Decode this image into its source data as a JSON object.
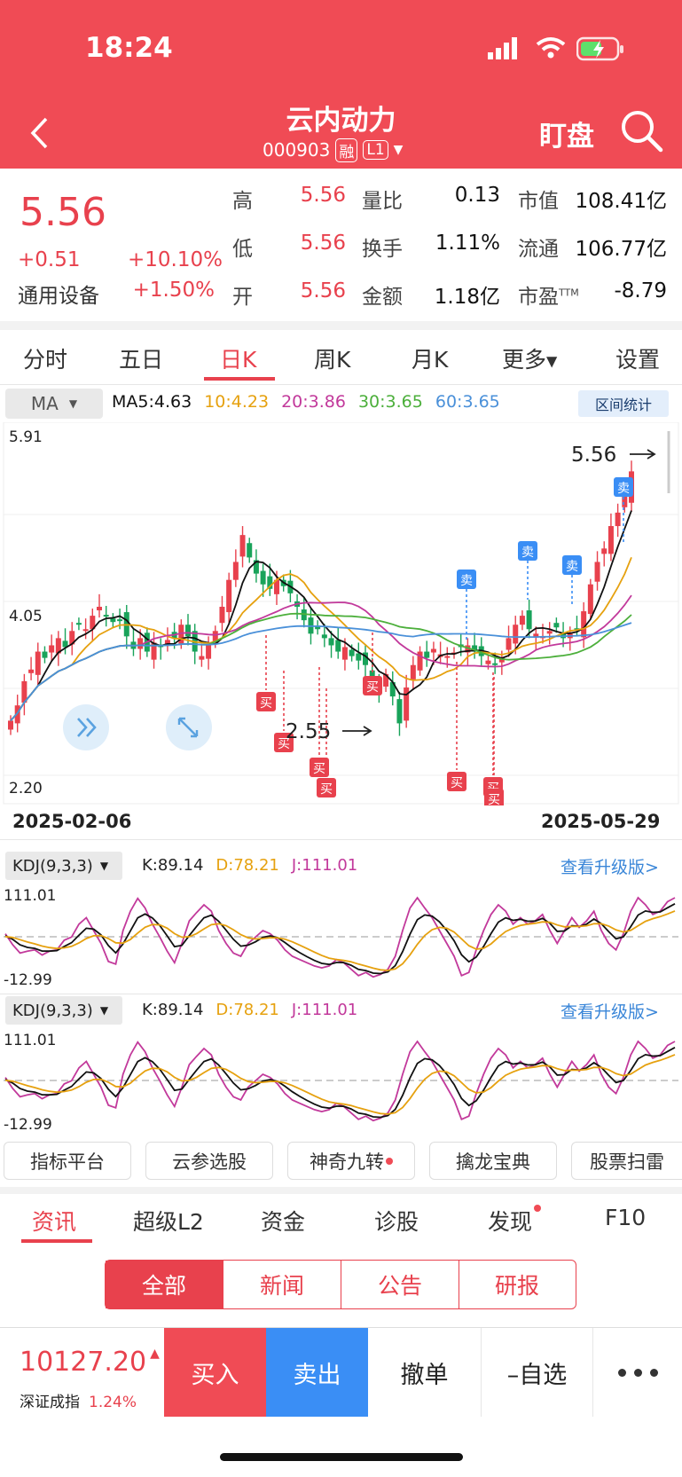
{
  "status": {
    "time": "18:24"
  },
  "header": {
    "title": "云内动力",
    "code": "000903",
    "badge1": "融",
    "badge2": "L1",
    "watch": "盯盘"
  },
  "quote": {
    "price": "5.56",
    "change": "+0.51",
    "change_pct": "+10.10%",
    "sector": "通用设备",
    "sector_pct": "+1.50%",
    "stats": [
      {
        "label": "高",
        "value": "5.56",
        "red": true
      },
      {
        "label": "量比",
        "value": "0.13"
      },
      {
        "label": "市值",
        "value": "108.41亿"
      },
      {
        "label": "低",
        "value": "5.56",
        "red": true
      },
      {
        "label": "换手",
        "value": "1.11%"
      },
      {
        "label": "流通",
        "value": "106.77亿"
      },
      {
        "label": "开",
        "value": "5.56",
        "red": true
      },
      {
        "label": "金额",
        "value": "1.18亿"
      },
      {
        "label": "市盈",
        "value": "-8.79",
        "sup": "TTM"
      }
    ]
  },
  "tabs": [
    "分时",
    "五日",
    "日K",
    "周K",
    "月K",
    "更多",
    "设置"
  ],
  "active_tab": "日K",
  "ma": {
    "selector": "MA",
    "items": [
      {
        "label": "MA5:4.63",
        "color": "#111111"
      },
      {
        "label": "10:4.23",
        "color": "#e6a10f"
      },
      {
        "label": "20:3.86",
        "color": "#c2399b"
      },
      {
        "label": "30:3.65",
        "color": "#4caf3b"
      },
      {
        "label": "60:3.65",
        "color": "#4a90d9"
      }
    ],
    "range_stat": "区间统计"
  },
  "chart_data": {
    "type": "candlestick",
    "y_axis": {
      "max": "5.91",
      "mid": "4.05",
      "min": "2.20"
    },
    "x_axis": {
      "start": "2025-02-06",
      "end": "2025-05-29"
    },
    "annotations": {
      "high": "5.56",
      "low": "2.55"
    },
    "buy_label": "买",
    "sell_label": "卖",
    "buy_count": 8,
    "sell_count": 4,
    "colors": {
      "up": "#e8414d",
      "down": "#19a35a"
    }
  },
  "kdj1": {
    "label": "KDJ(9,3,3)",
    "k": "K:89.14",
    "d": "D:78.21",
    "j": "J:111.01",
    "upper": "111.01",
    "lower": "-12.99",
    "link": "查看升级版>"
  },
  "kdj2": {
    "label": "KDJ(9,3,3)",
    "k": "K:89.14",
    "d": "D:78.21",
    "j": "J:111.01",
    "upper": "111.01",
    "lower": "-12.99",
    "link": "查看升级版>"
  },
  "chips": [
    "指标平台",
    "云参选股",
    "神奇九转",
    "擒龙宝典",
    "股票扫雷"
  ],
  "bottom_tabs": [
    "资讯",
    "超级L2",
    "资金",
    "诊股",
    "发现",
    "F10"
  ],
  "segments": [
    "全部",
    "新闻",
    "公告",
    "研报"
  ],
  "footer": {
    "index_value": "10127.20",
    "index_name": "深证成指",
    "index_pct": "1.24%",
    "buy": "买入",
    "sell": "卖出",
    "cancel": "撤单",
    "watchlist": "–自选"
  }
}
